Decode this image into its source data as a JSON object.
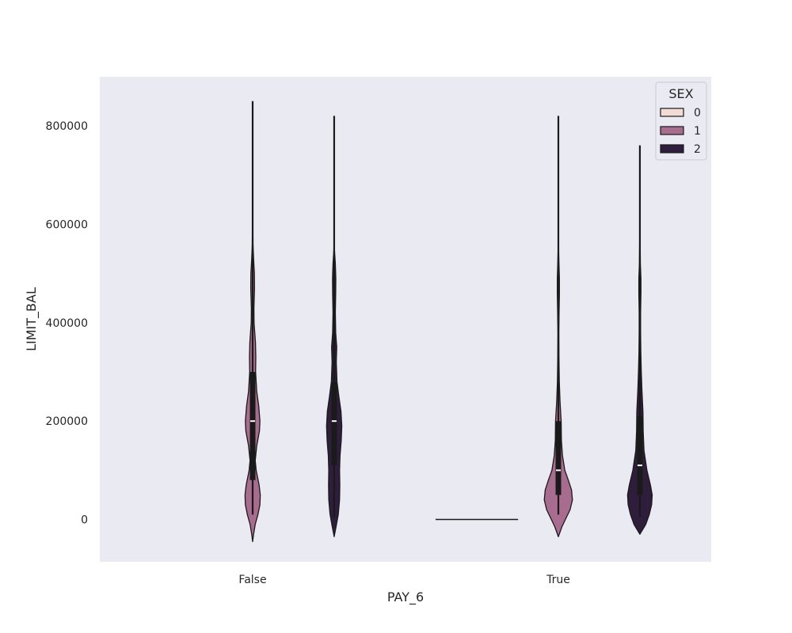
{
  "chart_data": {
    "type": "violin",
    "xlabel": "PAY_6",
    "ylabel": "LIMIT_BAL",
    "categories": [
      "False",
      "True"
    ],
    "ylim": [
      -86000,
      900000
    ],
    "yticks": [
      0,
      200000,
      400000,
      600000,
      800000
    ],
    "ytick_labels": [
      "0",
      "200000",
      "400000",
      "600000",
      "800000"
    ],
    "grid": false,
    "legend": {
      "title": "SEX",
      "position": "top-right",
      "entries": [
        "0",
        "1",
        "2"
      ],
      "colors": [
        "#f3dcd6",
        "#a86c8e",
        "#2e1e3c"
      ]
    },
    "line_color": "#1a1a1a",
    "background": "#eaeaf2",
    "series": [
      {
        "name": "0",
        "color": "#f3dcd6",
        "violins": [
          null,
          {
            "min": 0,
            "max": 0,
            "median": 0,
            "q1": 0,
            "q3": 0,
            "flat_halfwidth": 0.135
          }
        ]
      },
      {
        "name": "1",
        "color": "#a86c8e",
        "violins": [
          {
            "min": 10000,
            "max": 850000,
            "median": 200000,
            "q1": 80000,
            "q3": 300000,
            "density": [
              [
                -45000,
                0.0
              ],
              [
                -30000,
                0.008
              ],
              [
                -10000,
                0.022
              ],
              [
                10000,
                0.045
              ],
              [
                30000,
                0.062
              ],
              [
                50000,
                0.065
              ],
              [
                70000,
                0.055
              ],
              [
                100000,
                0.03
              ],
              [
                120000,
                0.022
              ],
              [
                150000,
                0.035
              ],
              [
                180000,
                0.058
              ],
              [
                200000,
                0.062
              ],
              [
                230000,
                0.052
              ],
              [
                260000,
                0.035
              ],
              [
                300000,
                0.025
              ],
              [
                330000,
                0.027
              ],
              [
                360000,
                0.024
              ],
              [
                400000,
                0.012
              ],
              [
                430000,
                0.011
              ],
              [
                470000,
                0.016
              ],
              [
                500000,
                0.015
              ],
              [
                530000,
                0.008
              ],
              [
                560000,
                0.003
              ],
              [
                620000,
                0.001
              ],
              [
                700000,
                0.0008
              ],
              [
                850000,
                0.0
              ]
            ]
          },
          {
            "min": 10000,
            "max": 820000,
            "median": 100000,
            "q1": 50000,
            "q3": 200000,
            "density": [
              [
                -35000,
                0.0
              ],
              [
                -15000,
                0.03
              ],
              [
                0,
                0.06
              ],
              [
                20000,
                0.1
              ],
              [
                40000,
                0.12
              ],
              [
                60000,
                0.112
              ],
              [
                80000,
                0.085
              ],
              [
                100000,
                0.055
              ],
              [
                130000,
                0.035
              ],
              [
                160000,
                0.026
              ],
              [
                200000,
                0.024
              ],
              [
                240000,
                0.014
              ],
              [
                280000,
                0.008
              ],
              [
                330000,
                0.005
              ],
              [
                380000,
                0.004
              ],
              [
                420000,
                0.006
              ],
              [
                460000,
                0.009
              ],
              [
                490000,
                0.009
              ],
              [
                520000,
                0.005
              ],
              [
                560000,
                0.001
              ],
              [
                620000,
                0.0005
              ],
              [
                820000,
                0.0
              ]
            ]
          }
        ]
      },
      {
        "name": "2",
        "color": "#2e1e3c",
        "violins": [
          {
            "min": 5000,
            "max": 820000,
            "median": 200000,
            "q1": 110000,
            "q3": 280000,
            "density": [
              [
                -35000,
                0.0
              ],
              [
                -15000,
                0.016
              ],
              [
                10000,
                0.035
              ],
              [
                40000,
                0.046
              ],
              [
                70000,
                0.048
              ],
              [
                100000,
                0.046
              ],
              [
                130000,
                0.05
              ],
              [
                160000,
                0.06
              ],
              [
                190000,
                0.065
              ],
              [
                220000,
                0.058
              ],
              [
                250000,
                0.04
              ],
              [
                280000,
                0.024
              ],
              [
                320000,
                0.018
              ],
              [
                350000,
                0.022
              ],
              [
                380000,
                0.013
              ],
              [
                420000,
                0.01
              ],
              [
                460000,
                0.013
              ],
              [
                490000,
                0.014
              ],
              [
                520000,
                0.01
              ],
              [
                550000,
                0.002
              ],
              [
                600000,
                0.0008
              ],
              [
                820000,
                0.0
              ]
            ]
          },
          {
            "min": 5000,
            "max": 760000,
            "median": 110000,
            "q1": 50000,
            "q3": 210000,
            "density": [
              [
                -30000,
                0.0
              ],
              [
                -10000,
                0.05
              ],
              [
                10000,
                0.08
              ],
              [
                30000,
                0.1
              ],
              [
                50000,
                0.105
              ],
              [
                70000,
                0.09
              ],
              [
                100000,
                0.06
              ],
              [
                140000,
                0.035
              ],
              [
                180000,
                0.028
              ],
              [
                220000,
                0.026
              ],
              [
                260000,
                0.018
              ],
              [
                300000,
                0.012
              ],
              [
                340000,
                0.008
              ],
              [
                380000,
                0.006
              ],
              [
                420000,
                0.006
              ],
              [
                460000,
                0.009
              ],
              [
                490000,
                0.009
              ],
              [
                520000,
                0.004
              ],
              [
                580000,
                0.001
              ],
              [
                760000,
                0.0
              ]
            ]
          }
        ]
      }
    ]
  }
}
